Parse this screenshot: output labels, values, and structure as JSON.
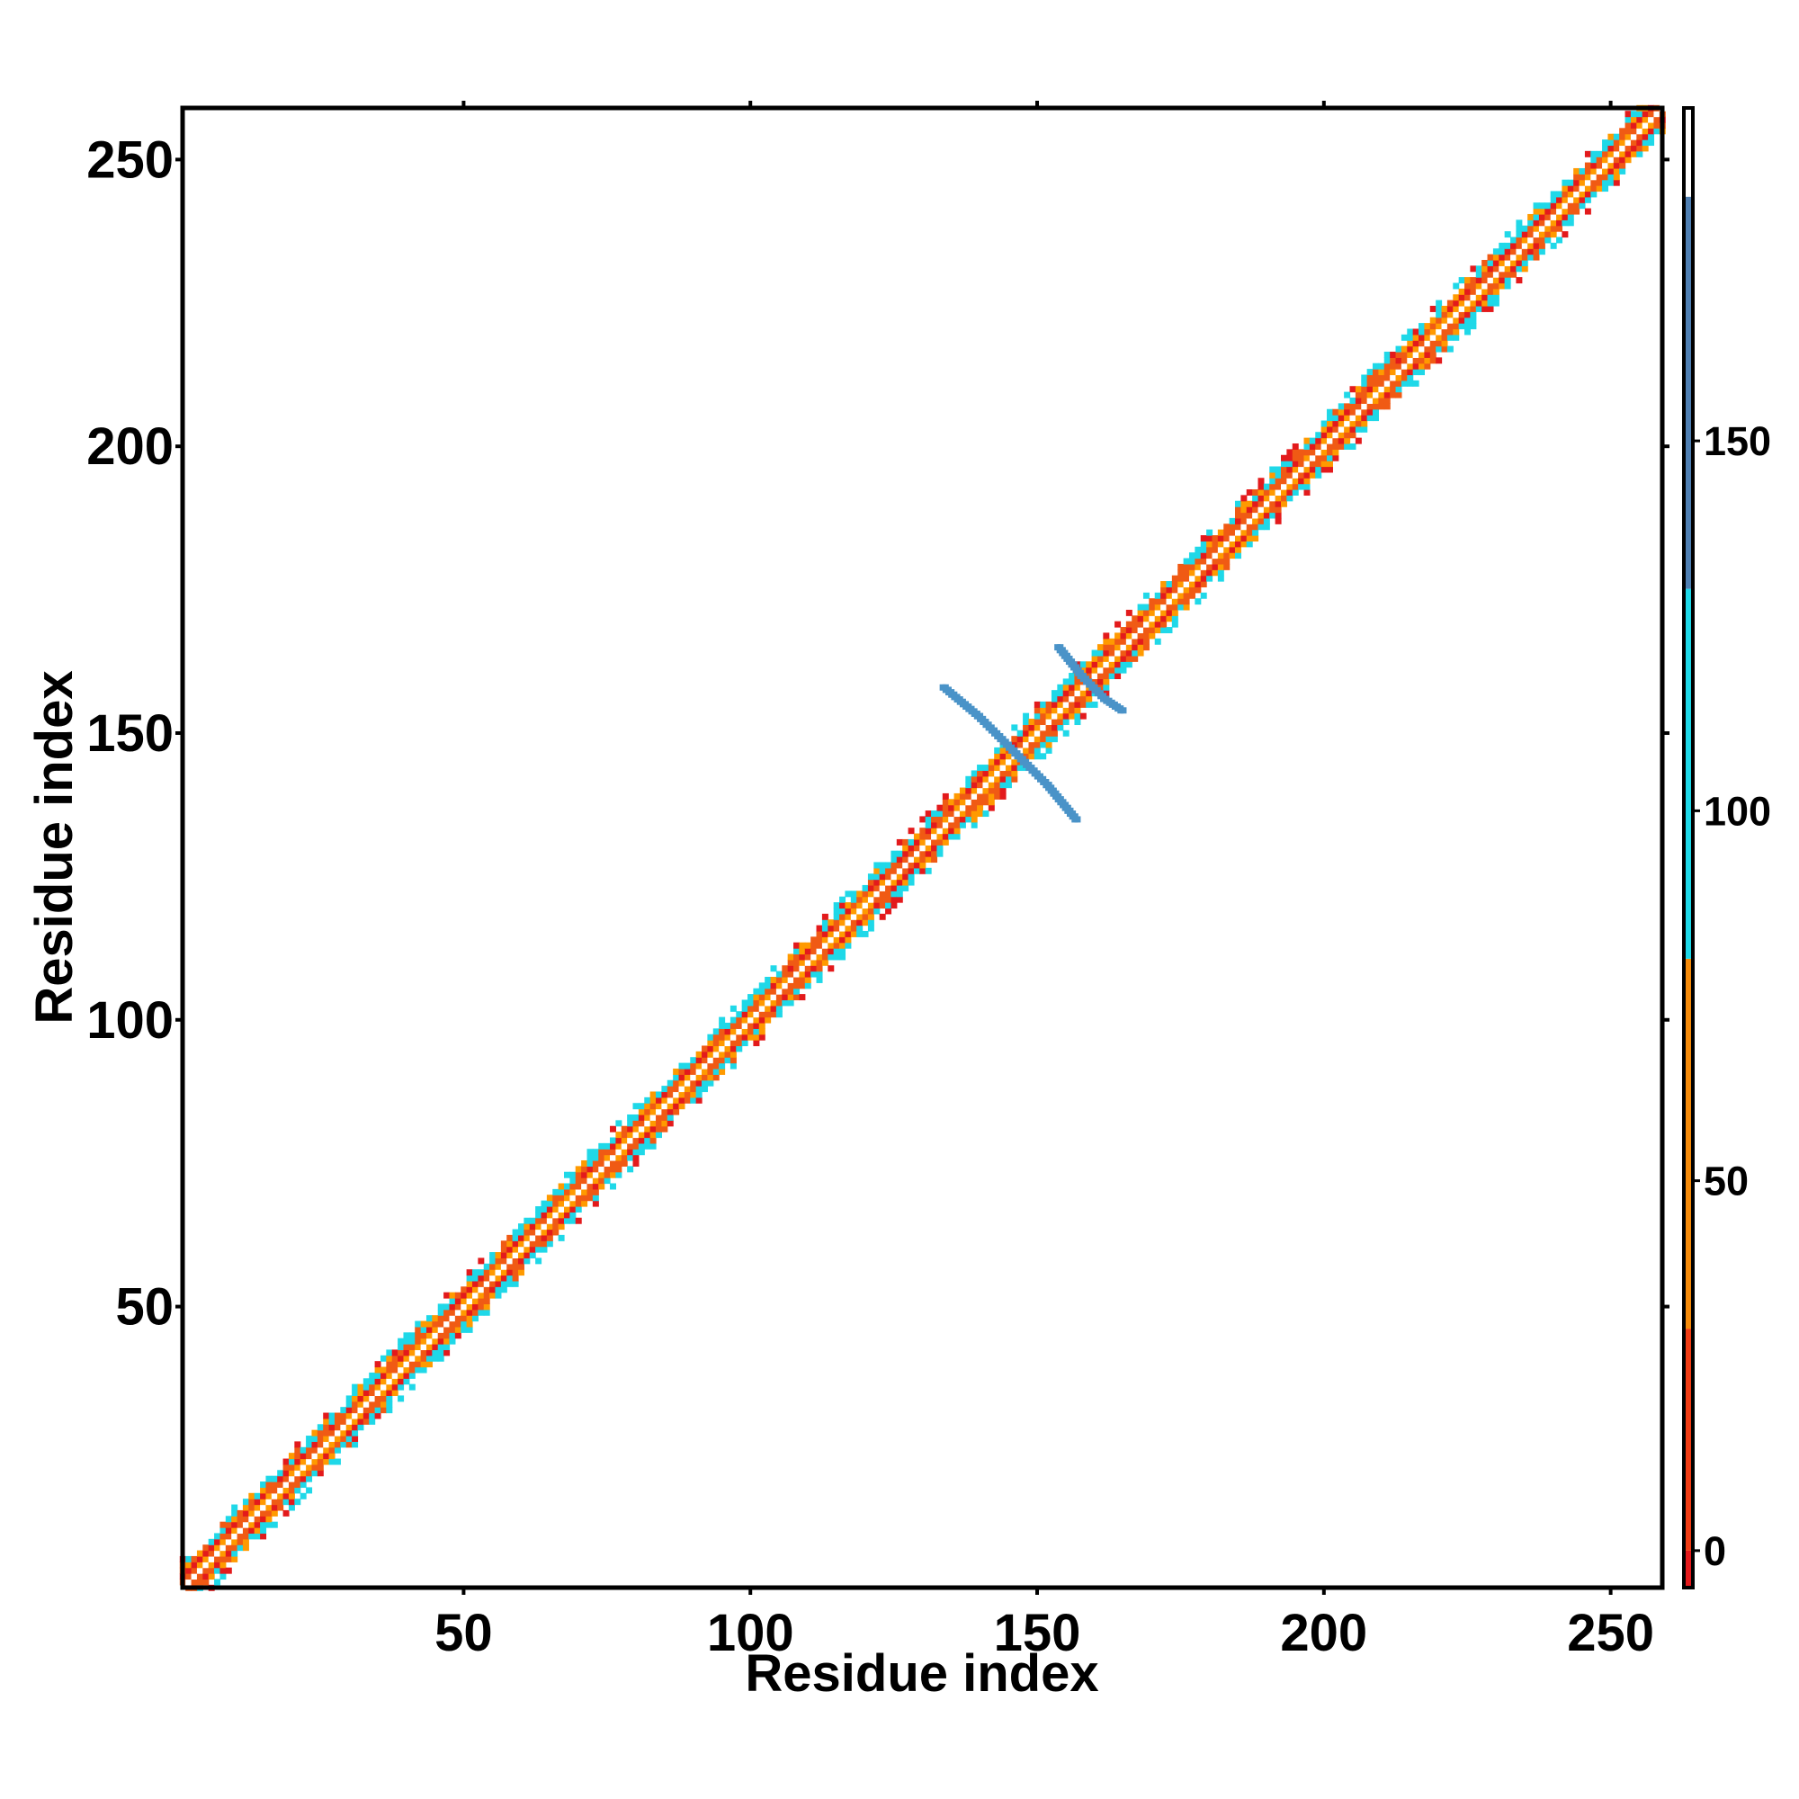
{
  "colors": {
    "background": "#ffffff",
    "frame": "#000000",
    "red": "#e31a1c",
    "orange_red": "#f05a14",
    "orange": "#ff9a00",
    "cyan": "#1fd8e8",
    "steel_blue": "#4a93c8",
    "blue": "#4f7fb2"
  },
  "chart_data": {
    "type": "heatmap",
    "title": "",
    "xlabel": "Residue index",
    "ylabel": "Residue index",
    "xlim": [
      1,
      259
    ],
    "ylim": [
      1,
      259
    ],
    "x_ticks": [
      50,
      100,
      150,
      200,
      250
    ],
    "y_ticks": [
      50,
      100,
      150,
      200,
      250
    ],
    "x_tick_labels": [
      "50",
      "100",
      "150",
      "200",
      "250"
    ],
    "y_tick_labels": [
      "50",
      "100",
      "150",
      "200",
      "250"
    ],
    "grid": false,
    "legend_placement": "right",
    "colorbar": {
      "range": [
        -5,
        195
      ],
      "ticks": [
        0,
        50,
        100,
        150
      ],
      "tick_labels": [
        "0",
        "50",
        "100",
        "150"
      ],
      "bands": [
        {
          "from": -5,
          "to": 0,
          "color": "#e31a1c"
        },
        {
          "from": 0,
          "to": 30,
          "color": "#f03c14"
        },
        {
          "from": 30,
          "to": 80,
          "color": "#f58a0a"
        },
        {
          "from": 80,
          "to": 130,
          "color": "#1fd8e8"
        },
        {
          "from": 130,
          "to": 183,
          "color": "#4f7fb2"
        },
        {
          "from": 183,
          "to": 195,
          "color": "#ffffff"
        }
      ]
    },
    "diagonal_band": {
      "start": 1,
      "end": 259,
      "half_width_residues": 5
    },
    "off_diagonal_features": [
      {
        "points": [
          [
            134,
            158
          ],
          [
            140,
            153
          ],
          [
            146,
            147
          ],
          [
            152,
            141
          ],
          [
            157,
            135
          ]
        ],
        "value": 150
      },
      {
        "points": [
          [
            154,
            165
          ],
          [
            158,
            160
          ],
          [
            162,
            156
          ],
          [
            165,
            154
          ]
        ],
        "value": 150
      }
    ]
  }
}
